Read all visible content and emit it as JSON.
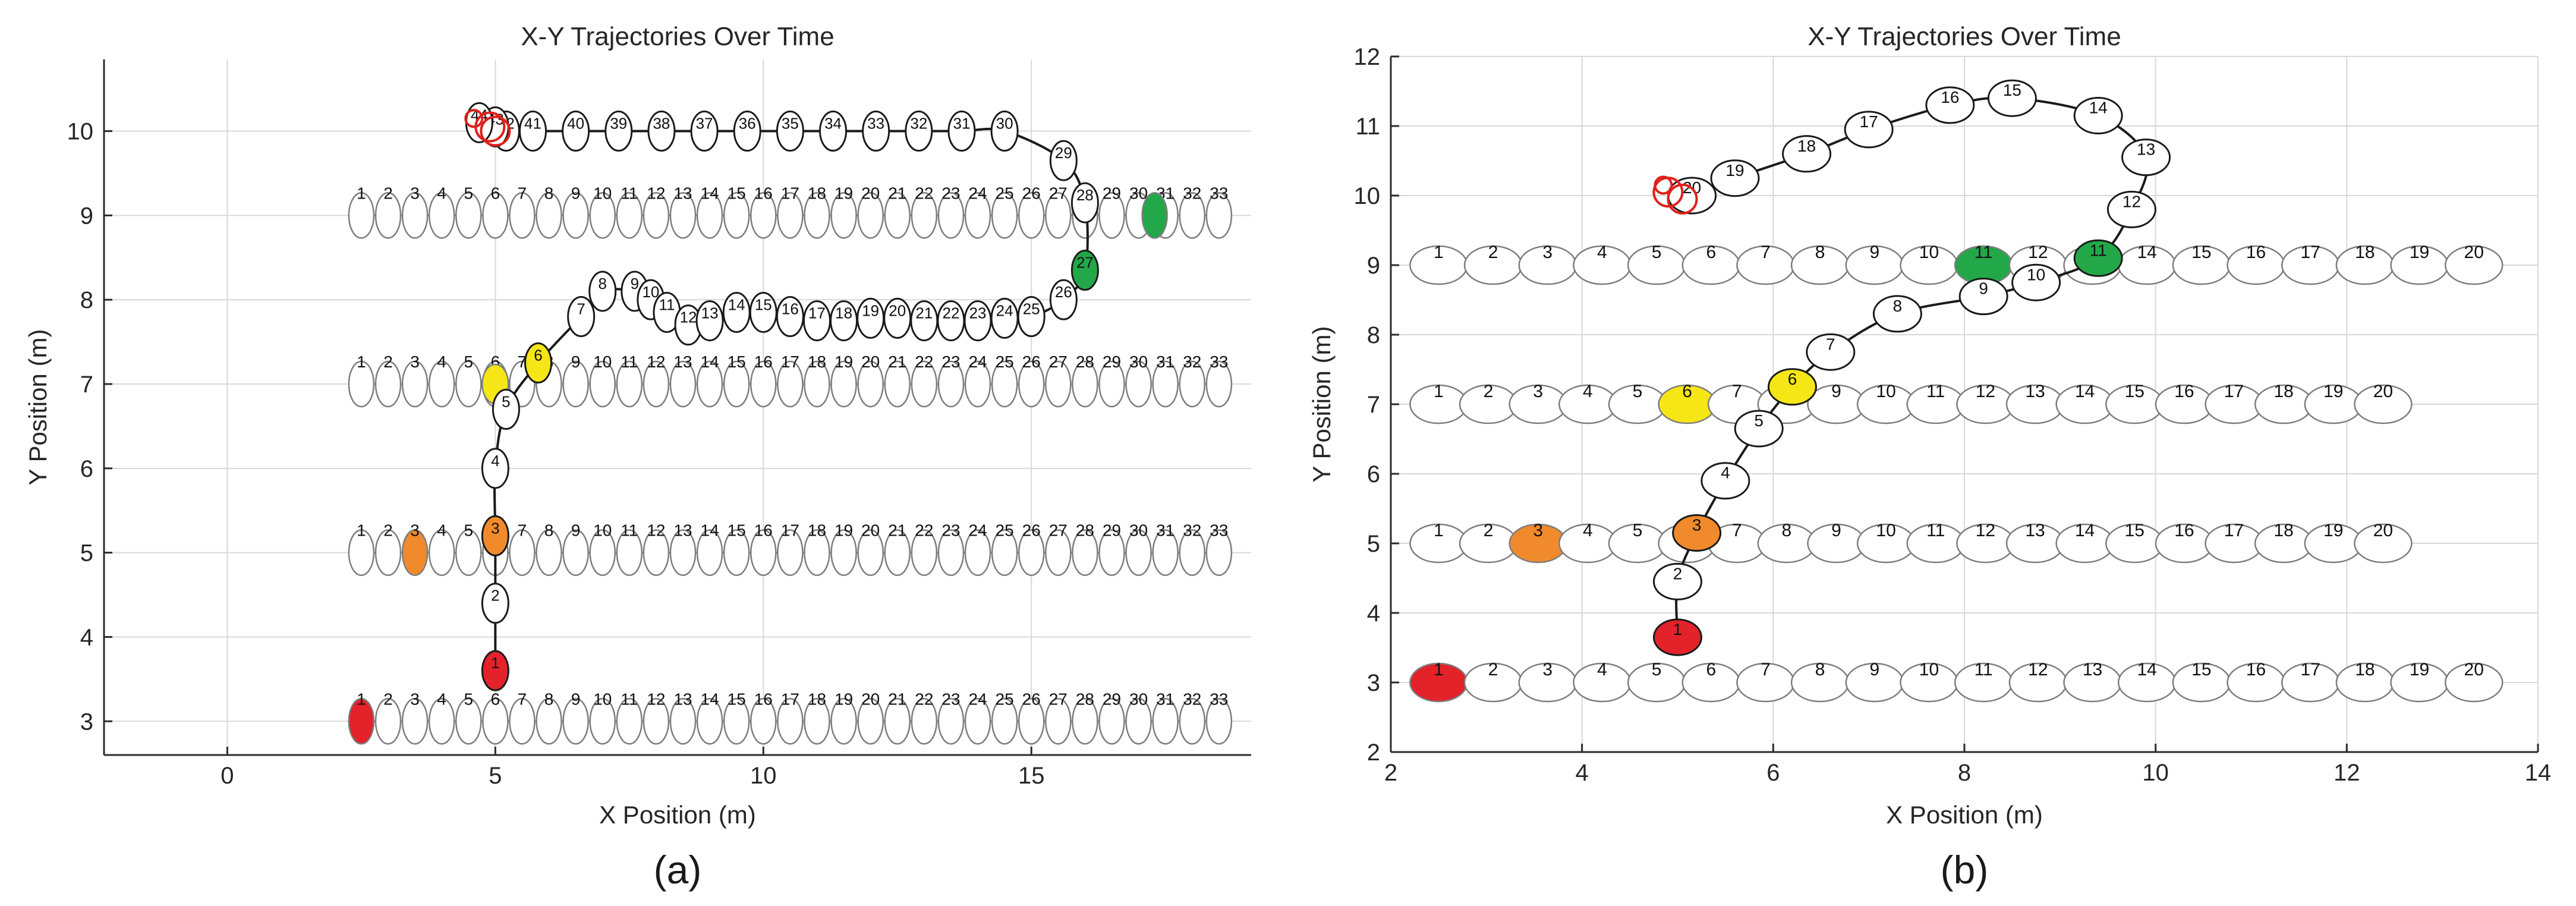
{
  "colors": {
    "red": "#e3222a",
    "orange": "#f08a2c",
    "yellow": "#f6e616",
    "green": "#23a849",
    "lane_stroke": "#7d7d7d",
    "trajectory": "#1a1a1a"
  },
  "chart_data": [
    {
      "type": "scatter",
      "panel": "(a)",
      "title": "X-Y Trajectories Over Time",
      "xlabel": "X Position (m)",
      "ylabel": "Y Position (m)",
      "xlim": [
        -2.3,
        19.1
      ],
      "ylim": [
        2.6,
        10.85
      ],
      "xticks": [
        0,
        5,
        10,
        15
      ],
      "yticks": [
        3,
        4,
        5,
        6,
        7,
        8,
        9,
        10
      ],
      "lanes": [
        {
          "y": 3,
          "x0": 2.5,
          "dx": 0.5,
          "count": 33,
          "highlights": [
            {
              "index": 1,
              "color": "red"
            }
          ]
        },
        {
          "y": 5,
          "x0": 2.5,
          "dx": 0.5,
          "count": 33,
          "highlights": [
            {
              "index": 3,
              "color": "orange"
            }
          ]
        },
        {
          "y": 7,
          "x0": 2.5,
          "dx": 0.5,
          "count": 33,
          "highlights": []
        },
        {
          "y": 9,
          "x0": 2.5,
          "dx": 0.5,
          "count": 33,
          "highlights": []
        }
      ],
      "extra_markers": [
        {
          "x": 17.3,
          "y": 9.0,
          "color": "green"
        }
      ],
      "trajectory": {
        "points": [
          {
            "label": "1",
            "x": 5.0,
            "y": 3.6
          },
          {
            "label": "2",
            "x": 5.0,
            "y": 4.4
          },
          {
            "label": "3",
            "x": 5.0,
            "y": 5.2
          },
          {
            "label": "4",
            "x": 5.0,
            "y": 6.0
          },
          {
            "label": "5",
            "x": 5.2,
            "y": 6.7
          },
          {
            "label": "6",
            "x": 5.8,
            "y": 7.25
          },
          {
            "label": "7",
            "x": 6.6,
            "y": 7.8
          },
          {
            "label": "8",
            "x": 7.0,
            "y": 8.1
          },
          {
            "label": "9",
            "x": 7.6,
            "y": 8.1
          },
          {
            "label": "10",
            "x": 7.9,
            "y": 8.0
          },
          {
            "label": "11",
            "x": 8.2,
            "y": 7.85
          },
          {
            "label": "12",
            "x": 8.6,
            "y": 7.7
          },
          {
            "label": "13",
            "x": 9.0,
            "y": 7.75
          },
          {
            "label": "14",
            "x": 9.5,
            "y": 7.85
          },
          {
            "label": "15",
            "x": 10.0,
            "y": 7.85
          },
          {
            "label": "16",
            "x": 10.5,
            "y": 7.8
          },
          {
            "label": "17",
            "x": 11.0,
            "y": 7.75
          },
          {
            "label": "18",
            "x": 11.5,
            "y": 7.75
          },
          {
            "label": "19",
            "x": 12.0,
            "y": 7.78
          },
          {
            "label": "20",
            "x": 12.5,
            "y": 7.78
          },
          {
            "label": "21",
            "x": 13.0,
            "y": 7.75
          },
          {
            "label": "22",
            "x": 13.5,
            "y": 7.75
          },
          {
            "label": "23",
            "x": 14.0,
            "y": 7.75
          },
          {
            "label": "24",
            "x": 14.5,
            "y": 7.78
          },
          {
            "label": "25",
            "x": 15.0,
            "y": 7.8
          },
          {
            "label": "26",
            "x": 15.6,
            "y": 8.0
          },
          {
            "label": "27",
            "x": 16.0,
            "y": 8.35
          },
          {
            "label": "28",
            "x": 16.0,
            "y": 9.15
          },
          {
            "label": "29",
            "x": 15.6,
            "y": 9.65
          },
          {
            "label": "30",
            "x": 14.5,
            "y": 10.0
          },
          {
            "label": "31",
            "x": 13.7,
            "y": 10.0
          },
          {
            "label": "32",
            "x": 12.9,
            "y": 10.0
          },
          {
            "label": "33",
            "x": 12.1,
            "y": 10.0
          },
          {
            "label": "34",
            "x": 11.3,
            "y": 10.0
          },
          {
            "label": "35",
            "x": 10.5,
            "y": 10.0
          },
          {
            "label": "36",
            "x": 9.7,
            "y": 10.0
          },
          {
            "label": "37",
            "x": 8.9,
            "y": 10.0
          },
          {
            "label": "38",
            "x": 8.1,
            "y": 10.0
          },
          {
            "label": "39",
            "x": 7.3,
            "y": 10.0
          },
          {
            "label": "40",
            "x": 6.5,
            "y": 10.0
          },
          {
            "label": "41",
            "x": 5.7,
            "y": 10.0
          },
          {
            "label": "42",
            "x": 5.2,
            "y": 10.0
          },
          {
            "label": "43",
            "x": 5.0,
            "y": 10.05
          },
          {
            "label": "44",
            "x": 4.7,
            "y": 10.1
          }
        ],
        "fills": [
          {
            "label": "1",
            "color": "red"
          },
          {
            "label": "3",
            "color": "orange"
          },
          {
            "label": "6",
            "color": "yellow"
          },
          {
            "label": "27",
            "color": "green"
          }
        ],
        "static_markers": [
          {
            "x": 5.0,
            "y": 7.0,
            "color": "yellow"
          }
        ],
        "red_rings": [
          {
            "x": 4.9,
            "y": 10.05
          },
          {
            "x": 5.0,
            "y": 10.0
          },
          {
            "x": 4.6,
            "y": 10.15
          }
        ]
      }
    },
    {
      "type": "scatter",
      "panel": "(b)",
      "title": "X-Y Trajectories Over Time",
      "xlabel": "X Position (m)",
      "ylabel": "Y Position (m)",
      "xlim": [
        2,
        14
      ],
      "ylim": [
        2,
        12
      ],
      "xticks": [
        2,
        4,
        6,
        8,
        10,
        12,
        14
      ],
      "yticks": [
        2,
        3,
        4,
        5,
        6,
        7,
        8,
        9,
        10,
        11,
        12
      ],
      "lanes": [
        {
          "y": 3,
          "x0": 2.5,
          "dx": 0.57,
          "count": 20,
          "highlights": [
            {
              "index": 1,
              "color": "red"
            }
          ]
        },
        {
          "y": 5,
          "x0": 2.5,
          "dx": 0.52,
          "count": 20,
          "highlights": [
            {
              "index": 3,
              "color": "orange"
            }
          ]
        },
        {
          "y": 7,
          "x0": 2.5,
          "dx": 0.52,
          "count": 20,
          "highlights": [
            {
              "index": 6,
              "color": "yellow"
            }
          ]
        },
        {
          "y": 9,
          "x0": 2.5,
          "dx": 0.57,
          "count": 20,
          "highlights": [
            {
              "index": 11,
              "color": "green"
            }
          ]
        }
      ],
      "extra_markers": [],
      "trajectory": {
        "points": [
          {
            "label": "1",
            "x": 5.0,
            "y": 3.65
          },
          {
            "label": "2",
            "x": 5.0,
            "y": 4.45
          },
          {
            "label": "3",
            "x": 5.2,
            "y": 5.15
          },
          {
            "label": "4",
            "x": 5.5,
            "y": 5.9
          },
          {
            "label": "5",
            "x": 5.85,
            "y": 6.65
          },
          {
            "label": "6",
            "x": 6.2,
            "y": 7.25
          },
          {
            "label": "7",
            "x": 6.6,
            "y": 7.75
          },
          {
            "label": "8",
            "x": 7.3,
            "y": 8.3
          },
          {
            "label": "9",
            "x": 8.2,
            "y": 8.55
          },
          {
            "label": "10",
            "x": 8.75,
            "y": 8.75
          },
          {
            "label": "11",
            "x": 9.4,
            "y": 9.1
          },
          {
            "label": "12",
            "x": 9.75,
            "y": 9.8
          },
          {
            "label": "13",
            "x": 9.9,
            "y": 10.55
          },
          {
            "label": "14",
            "x": 9.4,
            "y": 11.15
          },
          {
            "label": "15",
            "x": 8.5,
            "y": 11.4
          },
          {
            "label": "16",
            "x": 7.85,
            "y": 11.3
          },
          {
            "label": "17",
            "x": 7.0,
            "y": 10.95
          },
          {
            "label": "18",
            "x": 6.35,
            "y": 10.6
          },
          {
            "label": "19",
            "x": 5.6,
            "y": 10.25
          },
          {
            "label": "20",
            "x": 5.15,
            "y": 10.0
          }
        ],
        "fills": [
          {
            "label": "1",
            "color": "red"
          },
          {
            "label": "3",
            "color": "orange"
          },
          {
            "label": "6",
            "color": "yellow"
          },
          {
            "label": "11",
            "color": "green"
          }
        ],
        "static_markers": [],
        "red_rings": [
          {
            "x": 4.9,
            "y": 10.05
          },
          {
            "x": 5.05,
            "y": 9.95
          },
          {
            "x": 4.85,
            "y": 10.15
          }
        ]
      }
    }
  ]
}
